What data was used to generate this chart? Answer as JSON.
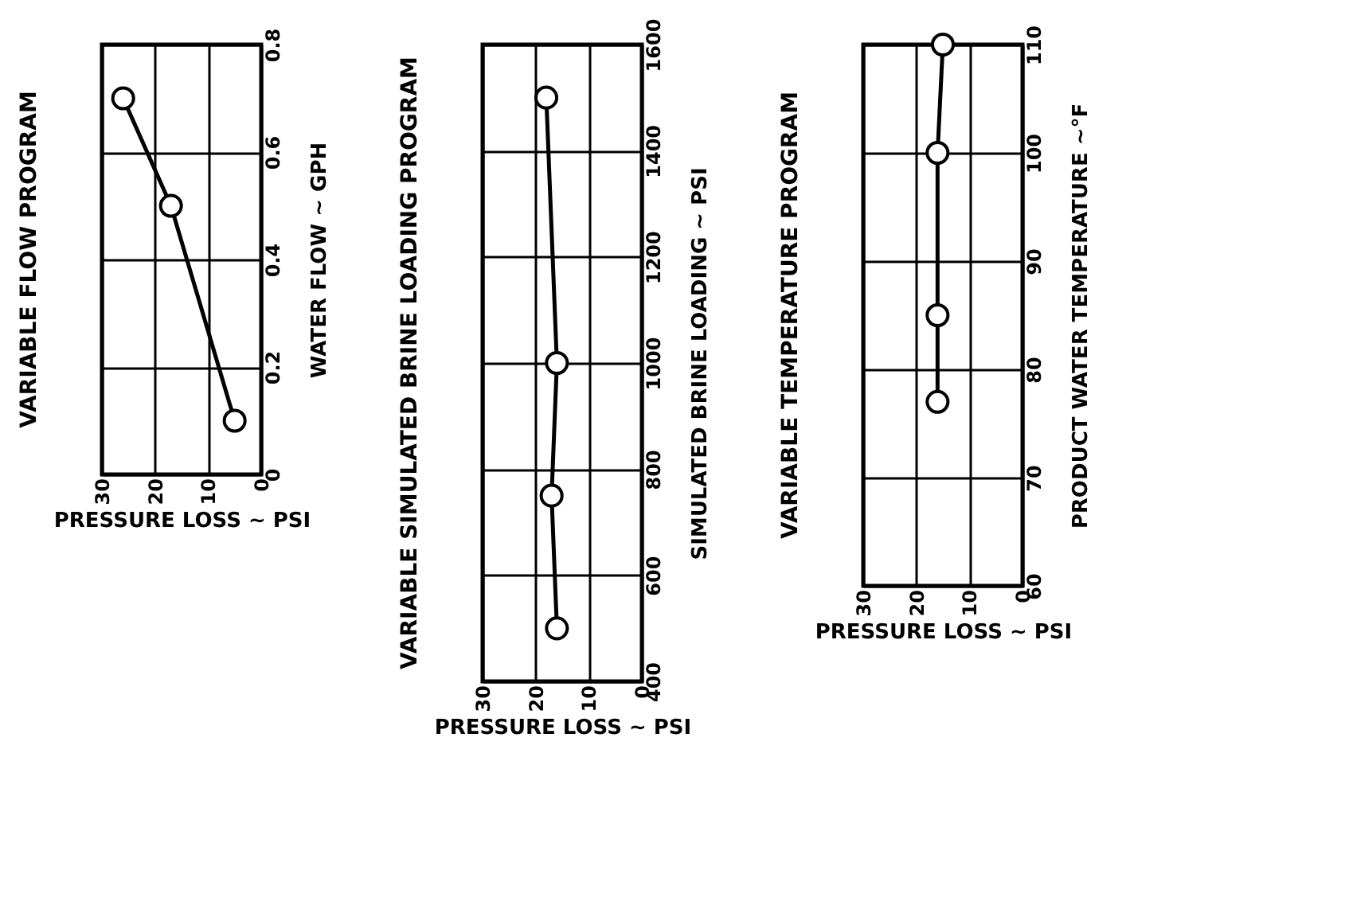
{
  "chart_data": [
    {
      "type": "line",
      "title": "VARIABLE FLOW PROGRAM",
      "xlabel": "PRESSURE LOSS ~ PSI",
      "ylabel": "WATER FLOW ~ GPH",
      "x": [
        26,
        17,
        5
      ],
      "series": [
        {
          "color": "#000000",
          "values": [
            0.7,
            0.5,
            0.1
          ]
        }
      ],
      "xlim": [
        30,
        0
      ],
      "xticks": [
        30,
        20,
        10,
        0
      ],
      "ylim": [
        0,
        0.8
      ],
      "yticks": [
        0,
        0.2,
        0.4,
        0.6,
        0.8
      ],
      "grid": true,
      "marker": "circle",
      "line_style": "solid"
    },
    {
      "type": "line",
      "title": "VARIABLE SIMULATED BRINE LOADING PROGRAM",
      "xlabel": "PRESSURE LOSS ~ PSI",
      "ylabel": "SIMULATED BRINE LOADING ~ PSI",
      "x": [
        18,
        16,
        17,
        16
      ],
      "series": [
        {
          "color": "#000000",
          "values": [
            1500,
            1000,
            750,
            500
          ]
        }
      ],
      "xlim": [
        30,
        0
      ],
      "xticks": [
        30,
        20,
        10,
        0
      ],
      "ylim": [
        400,
        1600
      ],
      "yticks": [
        400,
        600,
        800,
        1000,
        1200,
        1400,
        1600
      ],
      "grid": true,
      "marker": "circle",
      "line_style": "solid"
    },
    {
      "type": "line",
      "title": "VARIABLE TEMPERATURE PROGRAM",
      "xlabel": "PRESSURE LOSS ~ PSI",
      "ylabel": "PRODUCT WATER TEMPERATURE ~°F",
      "x": [
        15,
        16,
        16,
        16
      ],
      "series": [
        {
          "color": "#000000",
          "values": [
            110,
            100,
            85,
            77
          ]
        }
      ],
      "xlim": [
        30,
        0
      ],
      "xticks": [
        30,
        20,
        10,
        0
      ],
      "ylim": [
        60,
        110
      ],
      "yticks": [
        60,
        70,
        80,
        90,
        100,
        110
      ],
      "grid": true,
      "marker": "circle",
      "line_style": "solid"
    }
  ]
}
